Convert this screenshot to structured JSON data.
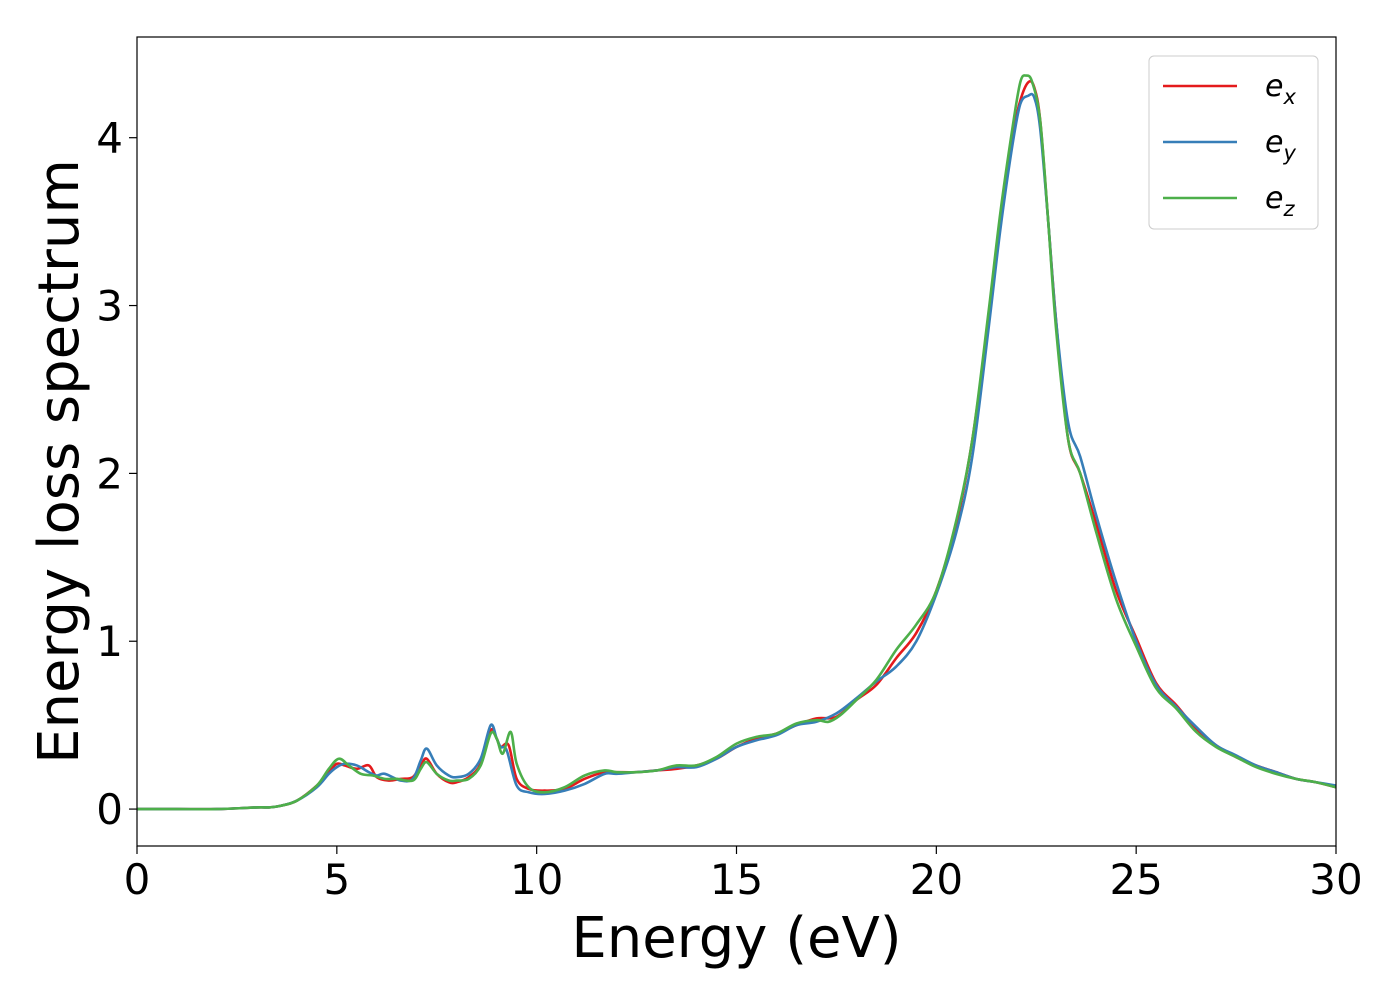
{
  "chart_data": {
    "type": "line",
    "xlabel": "Energy (eV)",
    "ylabel": "Energy loss spectrum",
    "xlim": [
      0,
      30
    ],
    "ylim": [
      -0.22,
      4.6
    ],
    "xticks": [
      0,
      5,
      10,
      15,
      20,
      25,
      30
    ],
    "xtick_labels": [
      "0",
      "5",
      "10",
      "15",
      "20",
      "25",
      "30"
    ],
    "yticks": [
      0,
      1,
      2,
      3,
      4
    ],
    "ytick_labels": [
      "0",
      "1",
      "2",
      "3",
      "4"
    ],
    "grid": false,
    "legend_position": "top-right",
    "series": [
      {
        "name": "e_x",
        "label_base": "e",
        "label_sub": "x",
        "color": "#e41a1c",
        "x": [
          0,
          1,
          2,
          3,
          3.3,
          3.6,
          4.0,
          4.5,
          4.8,
          5.0,
          5.2,
          5.5,
          5.8,
          6.0,
          6.3,
          6.6,
          6.9,
          7.1,
          7.25,
          7.5,
          7.8,
          8.0,
          8.3,
          8.6,
          8.85,
          9.0,
          9.1,
          9.3,
          9.5,
          9.8,
          10.2,
          10.7,
          11.2,
          11.7,
          12.0,
          12.5,
          13.0,
          13.5,
          14.0,
          14.5,
          15.0,
          15.5,
          16.0,
          16.5,
          17.0,
          17.5,
          18.0,
          18.5,
          19.0,
          19.5,
          20.0,
          20.5,
          20.9,
          21.3,
          21.6,
          21.9,
          22.1,
          22.3,
          22.45,
          22.6,
          22.8,
          23.0,
          23.3,
          23.6,
          24.0,
          24.5,
          25.0,
          25.5,
          26.0,
          26.5,
          27.0,
          27.5,
          28.0,
          28.5,
          29.0,
          29.5,
          30.0
        ],
        "y": [
          0.0,
          0.0,
          0.0,
          0.01,
          0.01,
          0.02,
          0.05,
          0.14,
          0.22,
          0.27,
          0.26,
          0.24,
          0.26,
          0.19,
          0.17,
          0.18,
          0.19,
          0.26,
          0.3,
          0.21,
          0.16,
          0.16,
          0.19,
          0.27,
          0.47,
          0.42,
          0.37,
          0.38,
          0.18,
          0.12,
          0.11,
          0.12,
          0.18,
          0.22,
          0.22,
          0.22,
          0.23,
          0.24,
          0.26,
          0.3,
          0.37,
          0.42,
          0.45,
          0.5,
          0.54,
          0.55,
          0.65,
          0.74,
          0.9,
          1.05,
          1.3,
          1.7,
          2.2,
          2.9,
          3.5,
          4.0,
          4.22,
          4.33,
          4.3,
          4.1,
          3.5,
          2.9,
          2.2,
          2.0,
          1.7,
          1.3,
          1.02,
          0.75,
          0.62,
          0.48,
          0.38,
          0.31,
          0.26,
          0.22,
          0.18,
          0.16,
          0.13
        ]
      },
      {
        "name": "e_y",
        "label_base": "e",
        "label_sub": "y",
        "color": "#377eb8",
        "x": [
          0,
          1,
          2,
          3,
          3.3,
          3.6,
          4.0,
          4.5,
          4.8,
          5.0,
          5.2,
          5.5,
          5.8,
          6.0,
          6.2,
          6.6,
          6.9,
          7.1,
          7.25,
          7.5,
          7.8,
          8.0,
          8.3,
          8.6,
          8.85,
          9.0,
          9.1,
          9.25,
          9.5,
          9.8,
          10.2,
          10.7,
          11.2,
          11.7,
          12.0,
          12.5,
          13.0,
          13.5,
          14.0,
          14.5,
          15.0,
          15.5,
          16.0,
          16.5,
          17.0,
          17.5,
          18.0,
          18.5,
          19.0,
          19.5,
          20.0,
          20.5,
          20.9,
          21.3,
          21.6,
          21.9,
          22.1,
          22.3,
          22.45,
          22.6,
          22.8,
          23.0,
          23.3,
          23.6,
          24.0,
          24.5,
          25.0,
          25.5,
          26.0,
          26.5,
          27.0,
          27.5,
          28.0,
          28.5,
          29.0,
          29.5,
          30.0
        ],
        "y": [
          0.0,
          0.0,
          0.0,
          0.01,
          0.01,
          0.02,
          0.05,
          0.13,
          0.21,
          0.25,
          0.27,
          0.26,
          0.22,
          0.2,
          0.21,
          0.17,
          0.18,
          0.29,
          0.36,
          0.26,
          0.2,
          0.19,
          0.21,
          0.3,
          0.5,
          0.42,
          0.37,
          0.35,
          0.14,
          0.1,
          0.09,
          0.11,
          0.15,
          0.21,
          0.21,
          0.22,
          0.23,
          0.25,
          0.25,
          0.3,
          0.37,
          0.41,
          0.44,
          0.5,
          0.52,
          0.57,
          0.66,
          0.76,
          0.85,
          1.0,
          1.28,
          1.65,
          2.1,
          2.85,
          3.45,
          3.95,
          4.2,
          4.25,
          4.24,
          4.05,
          3.5,
          2.9,
          2.3,
          2.1,
          1.75,
          1.35,
          1.0,
          0.74,
          0.61,
          0.49,
          0.38,
          0.32,
          0.26,
          0.22,
          0.18,
          0.16,
          0.14
        ]
      },
      {
        "name": "e_z",
        "label_base": "e",
        "label_sub": "z",
        "color": "#4daf4a",
        "x": [
          0,
          1,
          2,
          3,
          3.3,
          3.6,
          4.0,
          4.5,
          4.8,
          5.05,
          5.3,
          5.6,
          5.9,
          6.2,
          6.5,
          6.9,
          7.1,
          7.25,
          7.5,
          7.8,
          8.0,
          8.3,
          8.6,
          8.85,
          9.0,
          9.15,
          9.35,
          9.5,
          9.8,
          10.2,
          10.7,
          11.2,
          11.7,
          12.0,
          12.5,
          13.0,
          13.5,
          14.0,
          14.5,
          15.0,
          15.5,
          16.0,
          16.5,
          17.0,
          17.3,
          17.6,
          18.0,
          18.5,
          19.0,
          19.5,
          20.0,
          20.5,
          20.9,
          21.3,
          21.6,
          21.9,
          22.1,
          22.25,
          22.4,
          22.6,
          22.8,
          23.0,
          23.3,
          23.6,
          24.0,
          24.5,
          25.0,
          25.5,
          26.0,
          26.5,
          27.0,
          27.5,
          28.0,
          28.5,
          29.0,
          29.5,
          30.0
        ],
        "y": [
          0.0,
          0.0,
          0.0,
          0.01,
          0.01,
          0.02,
          0.05,
          0.14,
          0.24,
          0.3,
          0.26,
          0.21,
          0.2,
          0.18,
          0.18,
          0.17,
          0.24,
          0.28,
          0.21,
          0.17,
          0.17,
          0.18,
          0.26,
          0.45,
          0.42,
          0.33,
          0.46,
          0.27,
          0.13,
          0.1,
          0.13,
          0.2,
          0.23,
          0.22,
          0.22,
          0.23,
          0.26,
          0.26,
          0.31,
          0.39,
          0.43,
          0.45,
          0.51,
          0.53,
          0.52,
          0.56,
          0.65,
          0.77,
          0.95,
          1.1,
          1.3,
          1.72,
          2.2,
          2.95,
          3.55,
          4.05,
          4.33,
          4.37,
          4.33,
          4.1,
          3.5,
          2.85,
          2.2,
          2.0,
          1.65,
          1.25,
          0.97,
          0.72,
          0.6,
          0.46,
          0.37,
          0.31,
          0.25,
          0.21,
          0.18,
          0.16,
          0.13
        ]
      }
    ]
  }
}
